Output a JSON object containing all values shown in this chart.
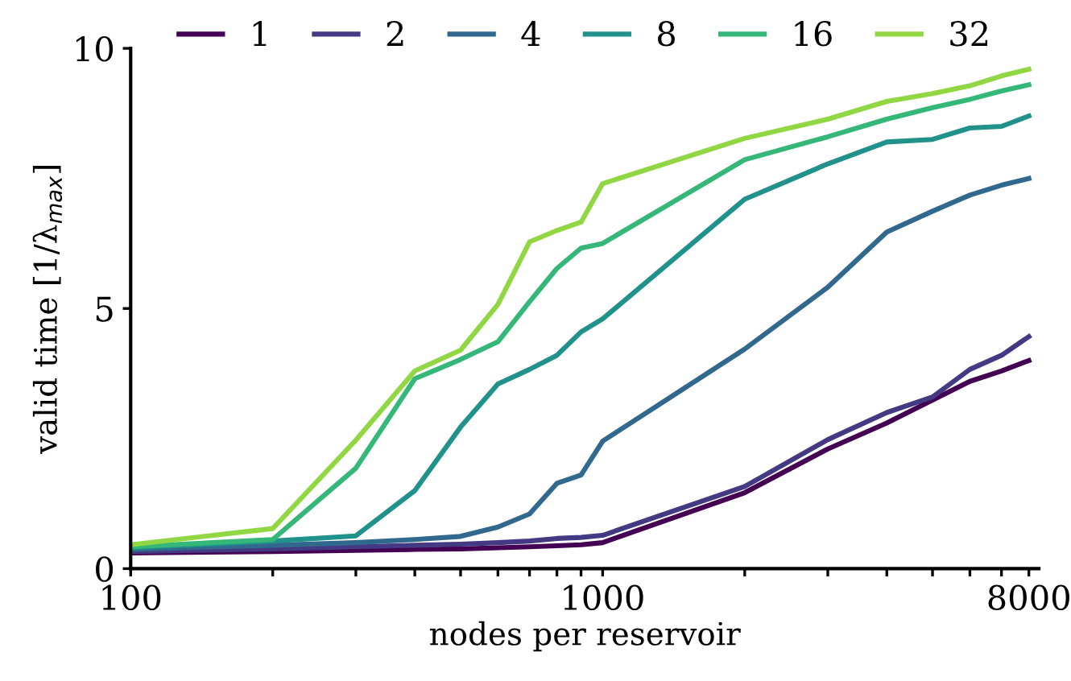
{
  "chart_data": {
    "type": "line",
    "xlabel": "nodes per reservoir",
    "ylabel": "valid time [1/λ$_{max}$]",
    "x": [
      100,
      200,
      300,
      400,
      500,
      600,
      700,
      800,
      900,
      1000,
      2000,
      3000,
      4000,
      5000,
      6000,
      7000,
      8000
    ],
    "series": [
      {
        "name": "1",
        "color": "#440154",
        "values": [
          0.3,
          0.33,
          0.35,
          0.37,
          0.38,
          0.4,
          0.42,
          0.44,
          0.46,
          0.5,
          1.46,
          2.3,
          2.8,
          3.24,
          3.6,
          3.8,
          4.0
        ]
      },
      {
        "name": "2",
        "color": "#443a83",
        "values": [
          0.33,
          0.38,
          0.42,
          0.45,
          0.47,
          0.5,
          0.53,
          0.58,
          0.6,
          0.64,
          1.58,
          2.48,
          3.0,
          3.3,
          3.83,
          4.1,
          4.46
        ]
      },
      {
        "name": "4",
        "color": "#31688e",
        "values": [
          0.37,
          0.45,
          0.5,
          0.56,
          0.62,
          0.8,
          1.05,
          1.64,
          1.8,
          2.45,
          4.22,
          5.41,
          6.47,
          6.87,
          7.18,
          7.37,
          7.5
        ]
      },
      {
        "name": "8",
        "color": "#21918c",
        "values": [
          0.4,
          0.53,
          0.63,
          1.5,
          2.72,
          3.55,
          3.83,
          4.1,
          4.55,
          4.8,
          7.1,
          7.78,
          8.2,
          8.25,
          8.47,
          8.5,
          8.7
        ]
      },
      {
        "name": "16",
        "color": "#35b779",
        "values": [
          0.42,
          0.56,
          1.93,
          3.65,
          4.02,
          4.36,
          5.13,
          5.77,
          6.16,
          6.25,
          7.86,
          8.3,
          8.64,
          8.86,
          9.02,
          9.18,
          9.3
        ]
      },
      {
        "name": "32",
        "color": "#90d743",
        "values": [
          0.46,
          0.77,
          2.47,
          3.8,
          4.2,
          5.08,
          6.28,
          6.5,
          6.66,
          7.4,
          8.27,
          8.64,
          8.98,
          9.13,
          9.28,
          9.47,
          9.6
        ]
      }
    ],
    "log": "x",
    "xlim": [
      100,
      8400
    ],
    "xticks": [
      100,
      {
        "value": 200,
        "label": null
      },
      {
        "value": 300,
        "label": null
      },
      {
        "value": 400,
        "label": null
      },
      {
        "value": 500,
        "label": null
      },
      {
        "value": 600,
        "label": null
      },
      {
        "value": 700,
        "label": null
      },
      {
        "value": 800,
        "label": null
      },
      {
        "value": 900,
        "label": null
      },
      1000,
      {
        "value": 2000,
        "label": null
      },
      {
        "value": 3000,
        "label": null
      },
      {
        "value": 4000,
        "label": null
      },
      {
        "value": 5000,
        "label": null
      },
      {
        "value": 6000,
        "label": null
      },
      {
        "value": 7000,
        "label": null
      },
      8000
    ],
    "ylim": [
      0,
      10
    ],
    "yticks": [
      0,
      5,
      10
    ],
    "grid": false,
    "legend": "top",
    "marker": "none",
    "line_style": "solid"
  }
}
